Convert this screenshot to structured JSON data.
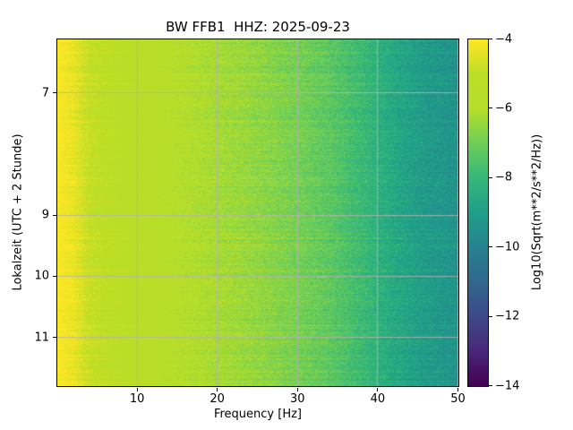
{
  "chart_data": {
    "type": "heatmap",
    "title": "BW FFB1  HHZ: 2025-09-23",
    "xlabel": "Frequency [Hz]",
    "ylabel": "Lokalzeit (UTC + 2 Stunde)",
    "x_range_hz": [
      0,
      50
    ],
    "y_range_hours": [
      6.12,
      11.79
    ],
    "x_ticks": [
      {
        "value": 10,
        "label": "10"
      },
      {
        "value": 20,
        "label": "20"
      },
      {
        "value": 30,
        "label": "30"
      },
      {
        "value": 40,
        "label": "40"
      },
      {
        "value": 50,
        "label": "50"
      }
    ],
    "y_ticks": [
      {
        "value": 7,
        "label": "7"
      },
      {
        "value": 9,
        "label": "9"
      },
      {
        "value": 10,
        "label": "10"
      },
      {
        "value": 11,
        "label": "11"
      }
    ],
    "grid": true,
    "grid_color": "rgba(178,178,178,0.85)",
    "colorbar": {
      "label": "Log10(Sqrt(m**2/s**2/Hz))",
      "range": [
        -14,
        -4
      ],
      "colormap": "viridis",
      "ticks": [
        {
          "value": -4,
          "label": "−4"
        },
        {
          "value": -6,
          "label": "−6"
        },
        {
          "value": -8,
          "label": "−8"
        },
        {
          "value": -10,
          "label": "−10"
        },
        {
          "value": -12,
          "label": "−12"
        },
        {
          "value": -14,
          "label": "−14"
        }
      ]
    },
    "colormap_anchors": [
      "#440154",
      "#482878",
      "#3e4989",
      "#31688e",
      "#26828e",
      "#1f9e89",
      "#35b779",
      "#6ece58",
      "#b5de2b",
      "#bdde26",
      "#fde725"
    ],
    "freq_profile_log10": [
      [
        0,
        -4.05
      ],
      [
        2,
        -4.3
      ],
      [
        4,
        -4.9
      ],
      [
        8,
        -5.3
      ],
      [
        12,
        -5.6
      ],
      [
        16,
        -5.9
      ],
      [
        20,
        -6.2
      ],
      [
        25,
        -6.5
      ],
      [
        30,
        -6.9
      ],
      [
        34,
        -7.3
      ],
      [
        38,
        -7.9
      ],
      [
        42,
        -8.6
      ],
      [
        46,
        -9.1
      ],
      [
        50,
        -9.4
      ]
    ],
    "noise": {
      "cell": 0.3,
      "row": 0.2,
      "streak": 0.25
    }
  }
}
